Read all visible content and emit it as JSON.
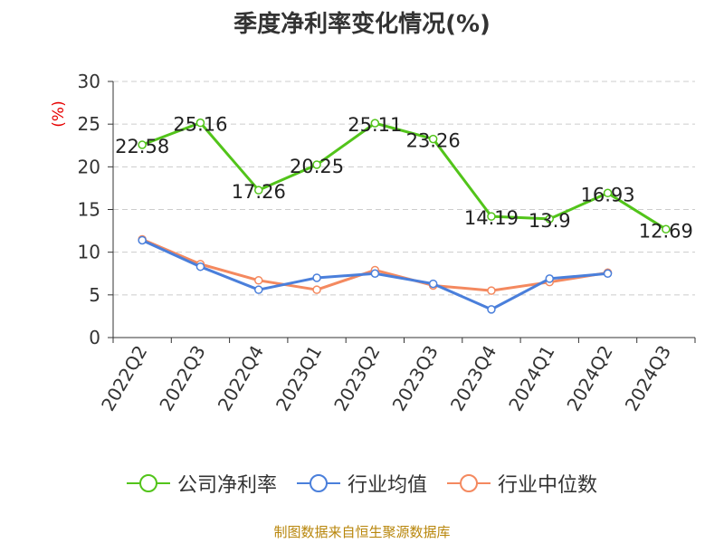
{
  "title": "季度净利率变化情况(%)",
  "source": "制图数据来自恒生聚源数据库",
  "chart_data": {
    "type": "line",
    "title": "季度净利率变化情况(%)",
    "ylabel": "(%)",
    "xlabel": "",
    "ylim": [
      0,
      30
    ],
    "yticks": [
      0,
      5,
      10,
      15,
      20,
      25,
      30
    ],
    "grid": true,
    "legend_position": "bottom",
    "categories": [
      "2022Q2",
      "2022Q3",
      "2022Q4",
      "2023Q1",
      "2023Q2",
      "2023Q3",
      "2023Q4",
      "2024Q1",
      "2024Q2",
      "2024Q3"
    ],
    "series": [
      {
        "name": "公司净利率",
        "color": "#52c41a",
        "values": [
          22.58,
          25.16,
          17.26,
          20.25,
          25.11,
          23.26,
          14.19,
          13.9,
          16.93,
          12.69
        ],
        "labels": [
          "22.58",
          "25.16",
          "17.26",
          "20.25",
          "25.11",
          "23.26",
          "14.19",
          "13.9",
          "16.93",
          "12.69"
        ]
      },
      {
        "name": "行业均值",
        "color": "#4a7fdb",
        "values": [
          11.4,
          8.3,
          5.6,
          7.0,
          7.5,
          6.3,
          3.3,
          6.9,
          7.5,
          null
        ]
      },
      {
        "name": "行业中位数",
        "color": "#f4895f",
        "values": [
          11.5,
          8.6,
          6.7,
          5.6,
          7.9,
          6.1,
          5.5,
          6.5,
          7.6,
          null
        ]
      }
    ]
  }
}
